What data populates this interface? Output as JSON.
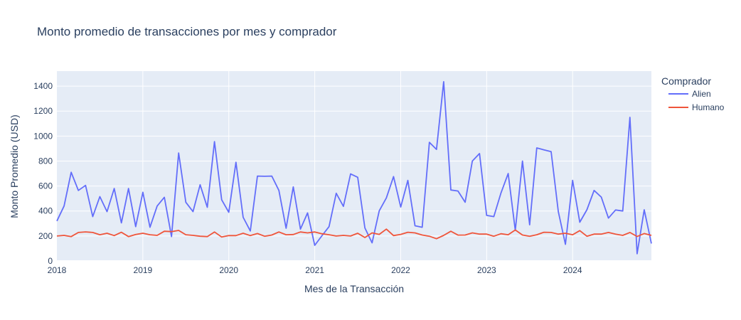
{
  "chart_data": {
    "type": "line",
    "title": "Monto promedio de transacciones por mes y comprador",
    "xlabel": "Mes de la Transacción",
    "ylabel": "Monto Promedio (USD)",
    "legend_title": "Comprador",
    "legend_position": "right",
    "grid": true,
    "xlim": [
      "2018-01",
      "2024-12"
    ],
    "ylim": [
      0,
      1520
    ],
    "xticks": [
      "2018",
      "2019",
      "2020",
      "2021",
      "2022",
      "2023",
      "2024"
    ],
    "yticks": [
      0,
      200,
      400,
      600,
      800,
      1000,
      1200,
      1400
    ],
    "colors": {
      "plot_bg": "#e5ecf6",
      "grid": "#ffffff",
      "text": "#2a3f5f",
      "alien": "#636efa",
      "humano": "#ef553b"
    },
    "x": [
      "2018-01",
      "2018-02",
      "2018-03",
      "2018-04",
      "2018-05",
      "2018-06",
      "2018-07",
      "2018-08",
      "2018-09",
      "2018-10",
      "2018-11",
      "2018-12",
      "2019-01",
      "2019-02",
      "2019-03",
      "2019-04",
      "2019-05",
      "2019-06",
      "2019-07",
      "2019-08",
      "2019-09",
      "2019-10",
      "2019-11",
      "2019-12",
      "2020-01",
      "2020-02",
      "2020-03",
      "2020-04",
      "2020-05",
      "2020-06",
      "2020-07",
      "2020-08",
      "2020-09",
      "2020-10",
      "2020-11",
      "2020-12",
      "2021-01",
      "2021-02",
      "2021-03",
      "2021-04",
      "2021-05",
      "2021-06",
      "2021-07",
      "2021-08",
      "2021-09",
      "2021-10",
      "2021-11",
      "2021-12",
      "2022-01",
      "2022-02",
      "2022-03",
      "2022-04",
      "2022-05",
      "2022-06",
      "2022-07",
      "2022-08",
      "2022-09",
      "2022-10",
      "2022-11",
      "2022-12",
      "2023-01",
      "2023-02",
      "2023-03",
      "2023-04",
      "2023-05",
      "2023-06",
      "2023-07",
      "2023-08",
      "2023-09",
      "2023-10",
      "2023-11",
      "2023-12",
      "2024-01",
      "2024-02",
      "2024-03",
      "2024-04",
      "2024-05",
      "2024-06",
      "2024-07",
      "2024-08",
      "2024-09",
      "2024-10",
      "2024-11",
      "2024-12"
    ],
    "series": [
      {
        "name": "Alien",
        "color": "#636efa",
        "values": [
          320,
          440,
          710,
          565,
          605,
          355,
          515,
          395,
          580,
          305,
          580,
          275,
          550,
          270,
          440,
          510,
          195,
          865,
          470,
          395,
          610,
          430,
          955,
          490,
          390,
          790,
          350,
          240,
          680,
          678,
          680,
          565,
          262,
          593,
          255,
          385,
          125,
          202,
          275,
          542,
          437,
          697,
          670,
          265,
          145,
          402,
          505,
          676,
          432,
          645,
          282,
          270,
          950,
          893,
          1435,
          568,
          560,
          470,
          800,
          860,
          365,
          355,
          545,
          700,
          245,
          800,
          290,
          905,
          890,
          875,
          395,
          133,
          645,
          310,
          410,
          565,
          512,
          343,
          408,
          400,
          1150,
          58,
          410,
          140
        ]
      },
      {
        "name": "Humano",
        "color": "#ef553b",
        "values": [
          200,
          205,
          195,
          228,
          233,
          228,
          210,
          222,
          203,
          230,
          195,
          212,
          222,
          210,
          205,
          238,
          235,
          245,
          210,
          205,
          198,
          195,
          232,
          192,
          203,
          203,
          222,
          203,
          220,
          198,
          208,
          232,
          210,
          212,
          232,
          225,
          232,
          218,
          210,
          200,
          205,
          200,
          222,
          188,
          225,
          213,
          255,
          203,
          213,
          230,
          225,
          208,
          198,
          178,
          205,
          238,
          207,
          208,
          225,
          215,
          215,
          198,
          218,
          210,
          248,
          208,
          198,
          210,
          230,
          228,
          215,
          222,
          210,
          243,
          198,
          215,
          215,
          228,
          215,
          205,
          228,
          196,
          220,
          205
        ]
      }
    ]
  }
}
